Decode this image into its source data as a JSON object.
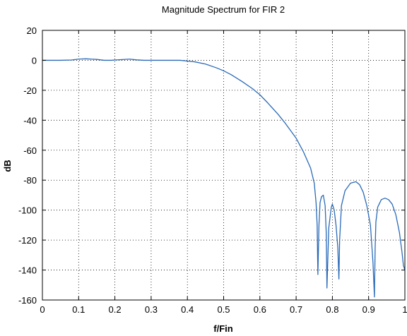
{
  "chart_data": {
    "type": "line",
    "title": "Magnitude Spectrum for FIR 2",
    "xlabel": "f/Fin",
    "ylabel": "dB",
    "xlim": [
      0,
      1
    ],
    "ylim": [
      -160,
      20
    ],
    "xticks": [
      0,
      0.1,
      0.2,
      0.3,
      0.4,
      0.5,
      0.6,
      0.7,
      0.8,
      0.9,
      1
    ],
    "yticks": [
      20,
      0,
      -20,
      -40,
      -60,
      -80,
      -100,
      -120,
      -140,
      -160
    ],
    "xtick_labels": [
      "0",
      "0.1",
      "0.2",
      "0.3",
      "0.4",
      "0.5",
      "0.6",
      "0.7",
      "0.8",
      "0.9",
      "1"
    ],
    "ytick_labels": [
      "20",
      "0",
      "-20",
      "-40",
      "-60",
      "-80",
      "-100",
      "-120",
      "-140",
      "-160"
    ],
    "grid": true,
    "grid_style": "dotted",
    "series": [
      {
        "color": "#2a6ab8",
        "x": [
          0,
          0.05,
          0.08,
          0.1,
          0.12,
          0.15,
          0.17,
          0.19,
          0.2,
          0.22,
          0.24,
          0.26,
          0.28,
          0.3,
          0.35,
          0.38,
          0.4,
          0.42,
          0.45,
          0.48,
          0.5,
          0.52,
          0.55,
          0.58,
          0.6,
          0.62,
          0.65,
          0.67,
          0.7,
          0.72,
          0.74,
          0.75,
          0.755,
          0.758,
          0.76,
          0.763,
          0.766,
          0.77,
          0.775,
          0.78,
          0.783,
          0.785,
          0.79,
          0.797,
          0.8,
          0.805,
          0.81,
          0.815,
          0.818,
          0.82,
          0.825,
          0.835,
          0.85,
          0.865,
          0.875,
          0.885,
          0.895,
          0.905,
          0.912,
          0.916,
          0.918,
          0.92,
          0.925,
          0.935,
          0.945,
          0.955,
          0.965,
          0.975,
          0.985,
          0.992,
          0.996,
          1
        ],
        "y": [
          0,
          0,
          0.2,
          0.8,
          1.0,
          0.6,
          0,
          0,
          0.2,
          0.5,
          0.8,
          0.3,
          0,
          0,
          0,
          0,
          -0.5,
          -1,
          -2.5,
          -5,
          -7,
          -9.5,
          -14,
          -19,
          -23,
          -28,
          -36,
          -42,
          -52,
          -61,
          -72,
          -82,
          -95,
          -110,
          -143,
          -110,
          -95,
          -91,
          -90,
          -97,
          -115,
          -152,
          -112,
          -98,
          -96,
          -100,
          -110,
          -125,
          -146,
          -120,
          -97,
          -87,
          -82,
          -81,
          -83,
          -88,
          -97,
          -110,
          -135,
          -158,
          -125,
          -108,
          -98,
          -93,
          -92,
          -93,
          -96,
          -103,
          -115,
          -128,
          -137,
          -140
        ]
      }
    ]
  }
}
